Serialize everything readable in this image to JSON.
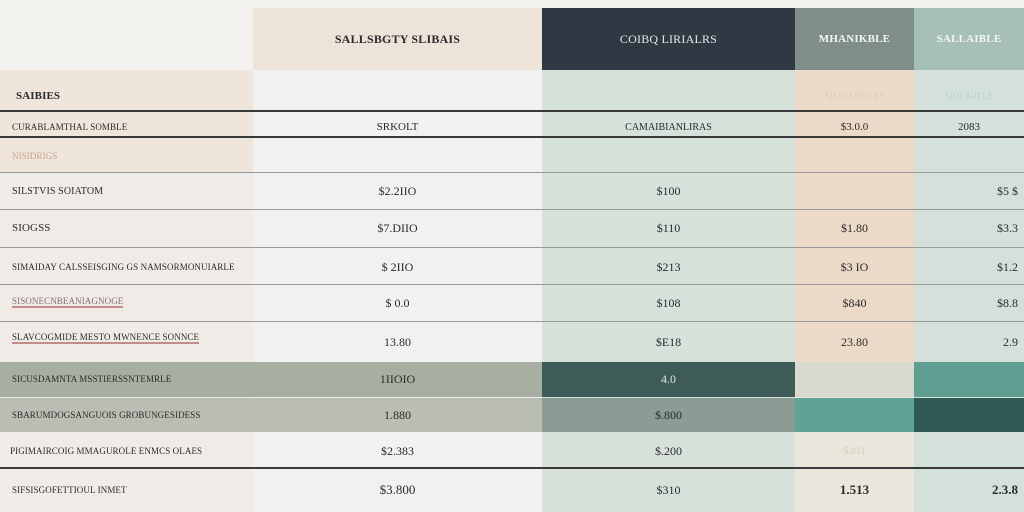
{
  "columns": [
    {
      "label": "SALLSBGTY SLIBAIS"
    },
    {
      "label": "COIBQ LIRIALRS"
    },
    {
      "label": "MHANIKBLE"
    },
    {
      "label": "SALLAIBLE"
    }
  ],
  "section_label": "SAIBIES",
  "subheaders": [
    "SRKOLT",
    "CAMAIBIANLIRAS",
    "$3.0.0",
    "2083"
  ],
  "row_labels": {
    "r0": "CURABLAMTHAL SOMBLE",
    "r1": "NISIDRIGS",
    "r2": "SILSTVIS SOIATOM",
    "r3": "SIOGSS",
    "r4": "SIMAIDAY CALSSEISGING GS NAMSORMONUIARLE",
    "r5": "SISONECNBEANIAGNOGE",
    "r6": "SLAVCOGMIDE MESTO MWNENCE SONNCE",
    "r7": "SICUSDAMNTA MSSTIERSSNTEMRLE",
    "r8": "SBARUMDOGSANGUOIS GROBUNGESIDESS",
    "r9": "PIGIMAIRCOIG MMAGUROLE ENMCS OLAES",
    "r10": "SIFSISGOFETTIOUL INMET"
  },
  "faded_labels": [
    "SILIRASIOTES",
    "SIDLARTLE"
  ],
  "values": {
    "r2": [
      "$2.2IIO",
      "$100",
      "",
      "$5 $"
    ],
    "r3": [
      "$7.DIIO",
      "$110",
      "$1.80",
      "$3.3"
    ],
    "r4": [
      "$ 2IIO",
      "$213",
      "$3 IO",
      "$1.2"
    ],
    "r5": [
      "$ 0.0",
      "$108",
      "$840",
      "$8.8"
    ],
    "r6": [
      "13.80",
      "$E18",
      "23.80",
      "2.9"
    ],
    "r7": [
      "1IIOIO",
      "4.0",
      "",
      ""
    ],
    "r8": [
      "1.880",
      "$.800",
      "",
      ""
    ],
    "r9": [
      "$2.383",
      "$.200",
      "$.811",
      ""
    ],
    "r10": [
      "$3.800",
      "$310",
      "1.513",
      "2.3.8"
    ]
  },
  "colors": {
    "peach": "#efe6dc",
    "mint": "#d2ddd4",
    "navy": "#2f3a44",
    "slate": "#9fb2ab",
    "teal_dark": "#3f5c58",
    "teal": "#5e9f93",
    "olive_band": "#a9b0a1"
  }
}
